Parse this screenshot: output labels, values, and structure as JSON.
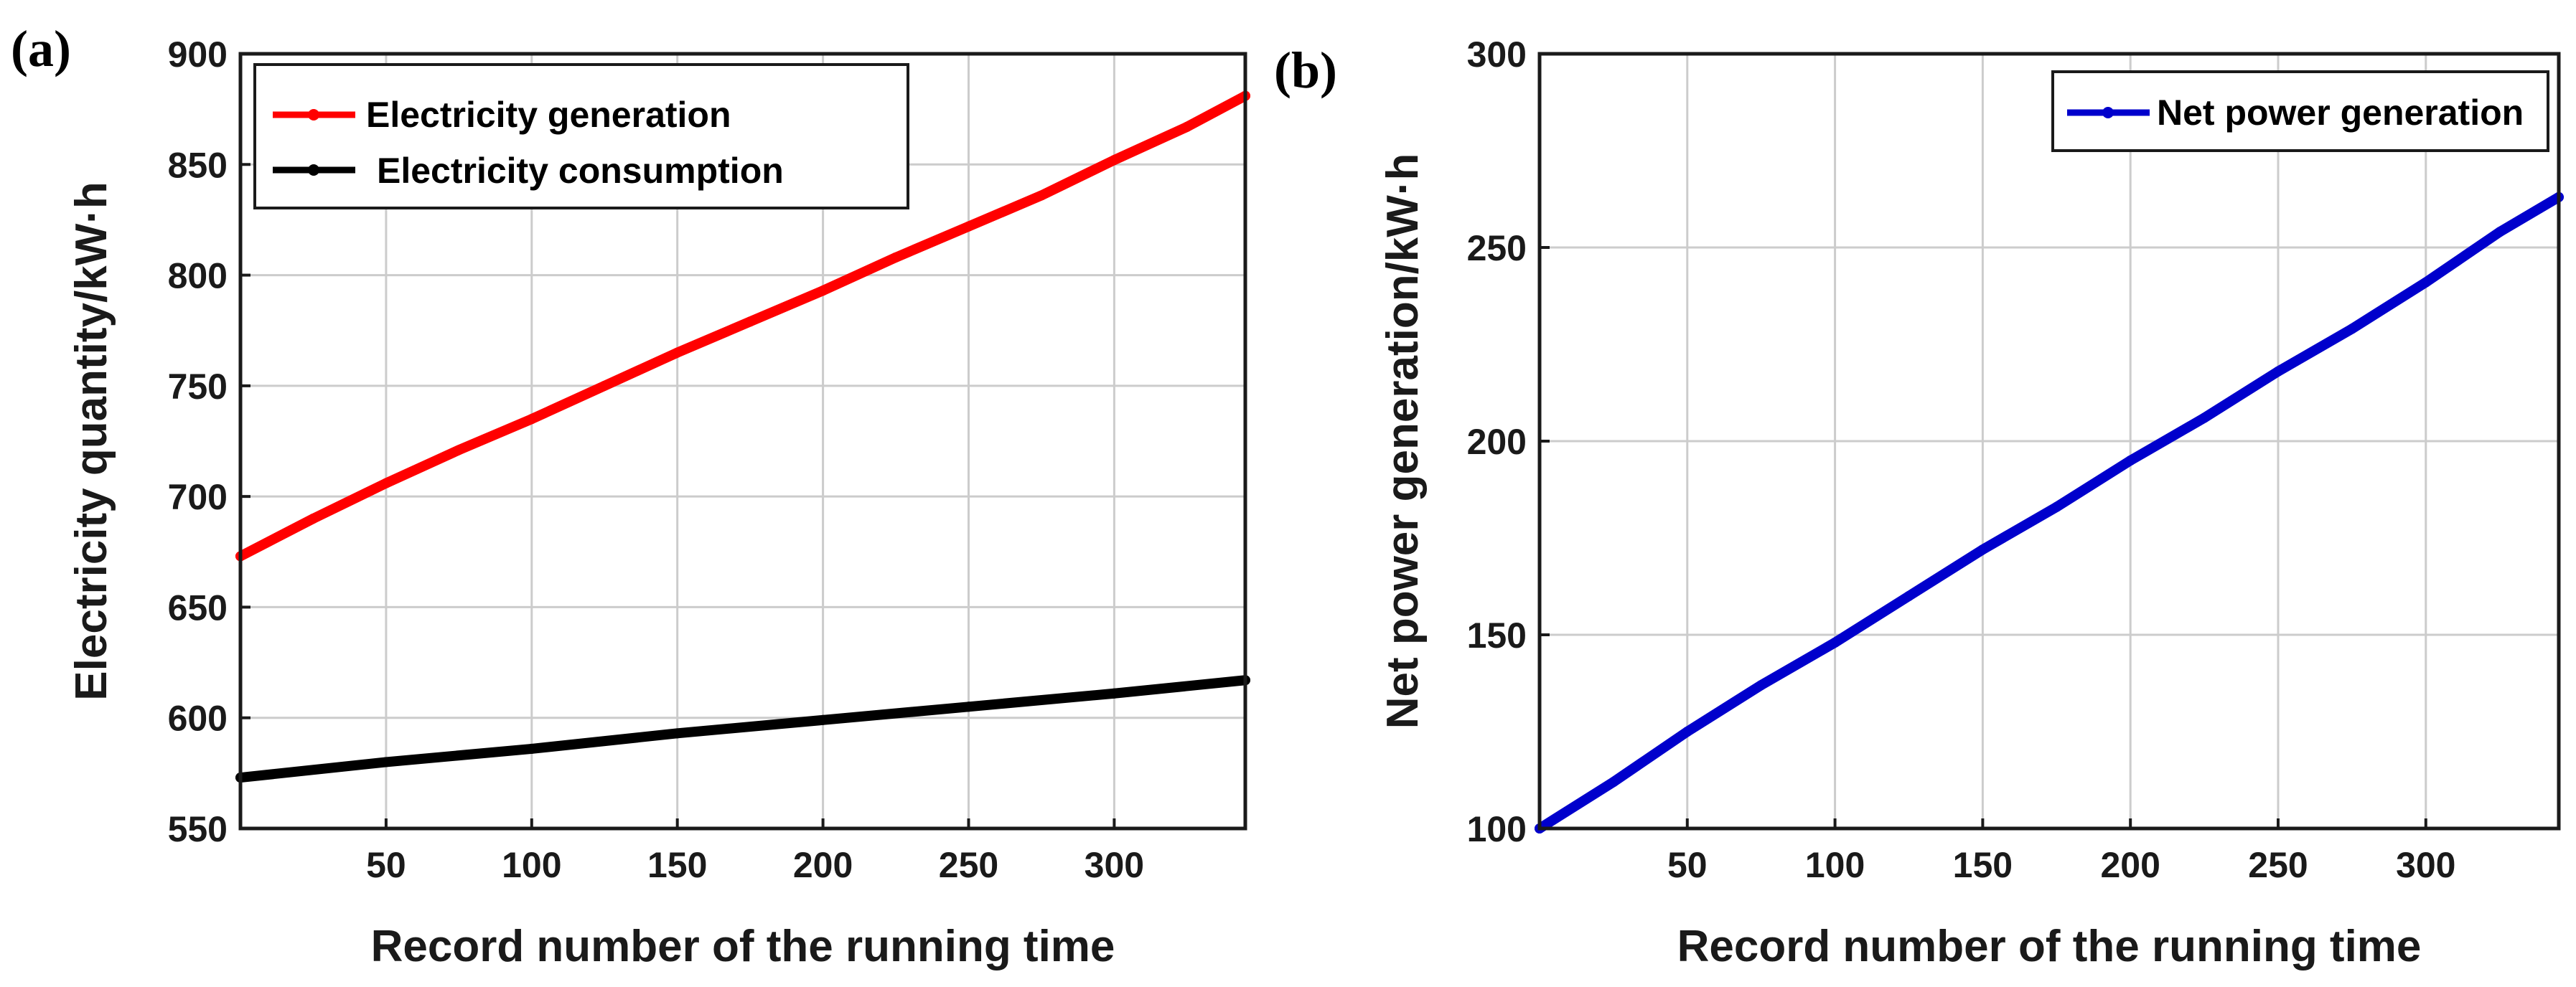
{
  "chart_data": [
    {
      "type": "line",
      "panel_label": "(a)",
      "xlabel": "Record number of the running time",
      "ylabel": "Electricity quantity/kW·h",
      "xlim": [
        0,
        345
      ],
      "ylim": [
        550,
        900
      ],
      "xticks": [
        50,
        100,
        150,
        200,
        250,
        300
      ],
      "yticks": [
        550,
        600,
        650,
        700,
        750,
        800,
        850,
        900
      ],
      "grid": true,
      "legend_position": "top-left",
      "series": [
        {
          "name": "Electricity generation",
          "color": "#ff0000",
          "x": [
            0,
            25,
            50,
            75,
            100,
            125,
            150,
            175,
            200,
            225,
            250,
            275,
            300,
            325,
            345
          ],
          "y": [
            673,
            690,
            706,
            721,
            735,
            750,
            765,
            779,
            793,
            808,
            822,
            836,
            852,
            867,
            881
          ]
        },
        {
          "name": "Electricity consumption",
          "color": "#000000",
          "x": [
            0,
            50,
            100,
            150,
            200,
            250,
            300,
            345
          ],
          "y": [
            573,
            580,
            586,
            593,
            599,
            605,
            611,
            617
          ]
        }
      ]
    },
    {
      "type": "line",
      "panel_label": "(b)",
      "xlabel": "Record number of the running time",
      "ylabel": "Net power generation/kW·h",
      "xlim": [
        0,
        345
      ],
      "ylim": [
        100,
        300
      ],
      "xticks": [
        50,
        100,
        150,
        200,
        250,
        300
      ],
      "yticks": [
        100,
        150,
        200,
        250,
        300
      ],
      "grid": true,
      "legend_position": "top-right",
      "series": [
        {
          "name": "Net power generation",
          "color": "#0000cc",
          "x": [
            0,
            25,
            50,
            75,
            100,
            125,
            150,
            175,
            200,
            225,
            250,
            275,
            300,
            325,
            345
          ],
          "y": [
            100,
            112,
            125,
            137,
            148,
            160,
            172,
            183,
            195,
            206,
            218,
            229,
            241,
            254,
            263
          ]
        }
      ]
    }
  ]
}
